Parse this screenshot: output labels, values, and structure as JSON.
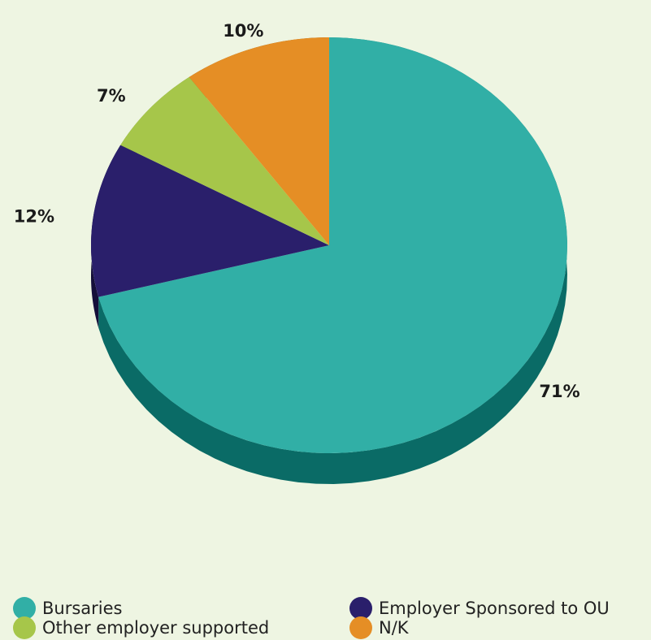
{
  "chart_data": {
    "type": "pie",
    "categories": [
      "Bursaries",
      "Employer Sponsored to OU",
      "Other employer supported",
      "N/K"
    ],
    "values": [
      71,
      12,
      7,
      10
    ],
    "value_labels": [
      "71%",
      "12%",
      "7%",
      "10%"
    ],
    "colors": [
      "#31afa6",
      "#2a1f6b",
      "#a6c64a",
      "#e58e25"
    ],
    "side_colors": [
      "#0a6b66",
      "#150f3a",
      "#6f8a2a",
      "#9a5c12"
    ],
    "legend": "bottom"
  }
}
